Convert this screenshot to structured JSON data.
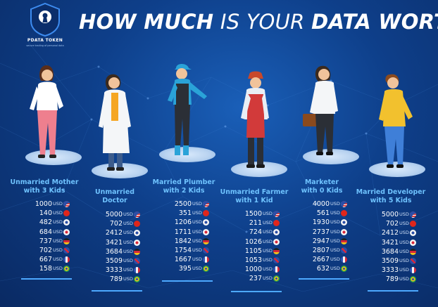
{
  "logo": {
    "name": "PDATA TOKEN",
    "tagline": "secure trading of personal data",
    "icon": "keyhole-shield-icon"
  },
  "title": {
    "part1": "HOW MUCH",
    "part2": "IS YOUR",
    "part3": "DATA WORTH?"
  },
  "unit": "USD",
  "flag_colors": {
    "us": "#d93a3a",
    "cn": "#e0261b",
    "kr": "#f2f2f2",
    "jp": "#f5f5f5",
    "de": "#e2a51b",
    "uk": "#2a4fa8",
    "fr": "#2f55b5",
    "br": "#27a14a"
  },
  "people": [
    {
      "heading": [
        "Unmarried Mother",
        "with 3 Kids"
      ],
      "values": [
        {
          "amount": "1000",
          "flag": "us"
        },
        {
          "amount": "140",
          "flag": "cn"
        },
        {
          "amount": "482",
          "flag": "kr"
        },
        {
          "amount": "684",
          "flag": "jp"
        },
        {
          "amount": "737",
          "flag": "de"
        },
        {
          "amount": "702",
          "flag": "uk"
        },
        {
          "amount": "667",
          "flag": "fr"
        },
        {
          "amount": "158",
          "flag": "br"
        }
      ]
    },
    {
      "heading": [
        "Unmarried",
        "Doctor"
      ],
      "values": [
        {
          "amount": "5000",
          "flag": "us"
        },
        {
          "amount": "702",
          "flag": "cn"
        },
        {
          "amount": "2412",
          "flag": "kr"
        },
        {
          "amount": "3421",
          "flag": "jp"
        },
        {
          "amount": "3684",
          "flag": "de"
        },
        {
          "amount": "3509",
          "flag": "uk"
        },
        {
          "amount": "3333",
          "flag": "fr"
        },
        {
          "amount": "789",
          "flag": "br"
        }
      ]
    },
    {
      "heading": [
        "Married Plumber",
        "with 2 Kids"
      ],
      "values": [
        {
          "amount": "2500",
          "flag": "us"
        },
        {
          "amount": "351",
          "flag": "cn"
        },
        {
          "amount": "1206",
          "flag": "kr"
        },
        {
          "amount": "1711",
          "flag": "jp"
        },
        {
          "amount": "1842",
          "flag": "de"
        },
        {
          "amount": "1754",
          "flag": "uk"
        },
        {
          "amount": "1667",
          "flag": "fr"
        },
        {
          "amount": "395",
          "flag": "br"
        }
      ]
    },
    {
      "heading": [
        "Unmarried Farmer",
        "with 1 Kid"
      ],
      "values": [
        {
          "amount": "1500",
          "flag": "us"
        },
        {
          "amount": "211",
          "flag": "cn"
        },
        {
          "amount": "724",
          "flag": "kr"
        },
        {
          "amount": "1026",
          "flag": "jp"
        },
        {
          "amount": "1105",
          "flag": "de"
        },
        {
          "amount": "1053",
          "flag": "uk"
        },
        {
          "amount": "1000",
          "flag": "fr"
        },
        {
          "amount": "237",
          "flag": "br"
        }
      ]
    },
    {
      "heading": [
        "Marketer",
        "with 0 Kids"
      ],
      "values": [
        {
          "amount": "4000",
          "flag": "us"
        },
        {
          "amount": "561",
          "flag": "cn"
        },
        {
          "amount": "1930",
          "flag": "kr"
        },
        {
          "amount": "2737",
          "flag": "jp"
        },
        {
          "amount": "2947",
          "flag": "de"
        },
        {
          "amount": "2807",
          "flag": "uk"
        },
        {
          "amount": "2667",
          "flag": "fr"
        },
        {
          "amount": "632",
          "flag": "br"
        }
      ]
    },
    {
      "heading": [
        "Married Developer",
        "with 5 Kids"
      ],
      "values": [
        {
          "amount": "5000",
          "flag": "us"
        },
        {
          "amount": "702",
          "flag": "cn"
        },
        {
          "amount": "2412",
          "flag": "kr"
        },
        {
          "amount": "3421",
          "flag": "jp"
        },
        {
          "amount": "3684",
          "flag": "de"
        },
        {
          "amount": "3509",
          "flag": "uk"
        },
        {
          "amount": "3333",
          "flag": "fr"
        },
        {
          "amount": "789",
          "flag": "br"
        }
      ]
    }
  ]
}
